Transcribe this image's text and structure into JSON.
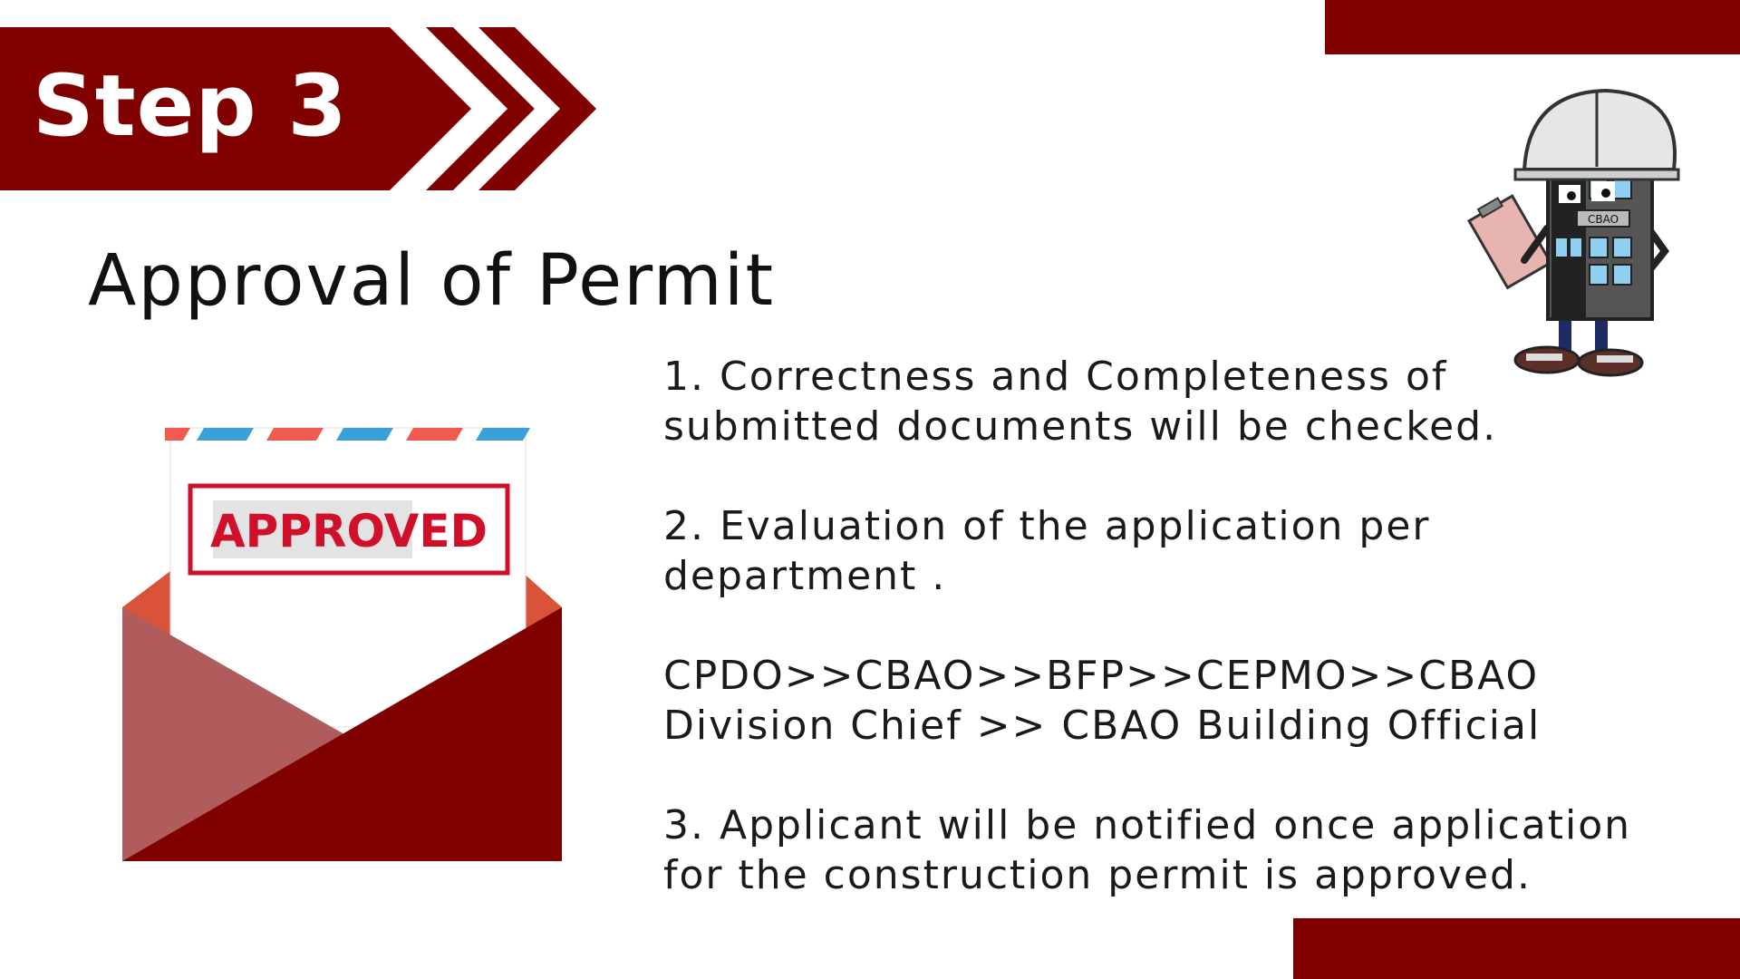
{
  "slide": {
    "step_label": "Step 3",
    "title": "Approval of Permit",
    "stamp_text": "APPROVED",
    "mascot_badge": "CBAO",
    "items": [
      "1. Correctness and Completeness of\nsubmitted documents will be checked.",
      "2. Evaluation of the application per\ndepartment .",
      "CPDO>>CBAO>>BFP>>CEPMO>>CBAO\nDivision Chief >> CBAO Building Official",
      "3. Applicant will be notified once application\nfor the construction permit is approved."
    ]
  },
  "colors": {
    "primary": "#800000",
    "envelope_light": "#b05c5c",
    "airmail_red": "#f05a4f",
    "airmail_blue": "#3aa0d8",
    "stamp_red": "#d0102a"
  },
  "icons": {
    "envelope": "open-envelope-icon",
    "mascot": "building-mascot-illustration",
    "arrows": "chevron-right-icon"
  }
}
